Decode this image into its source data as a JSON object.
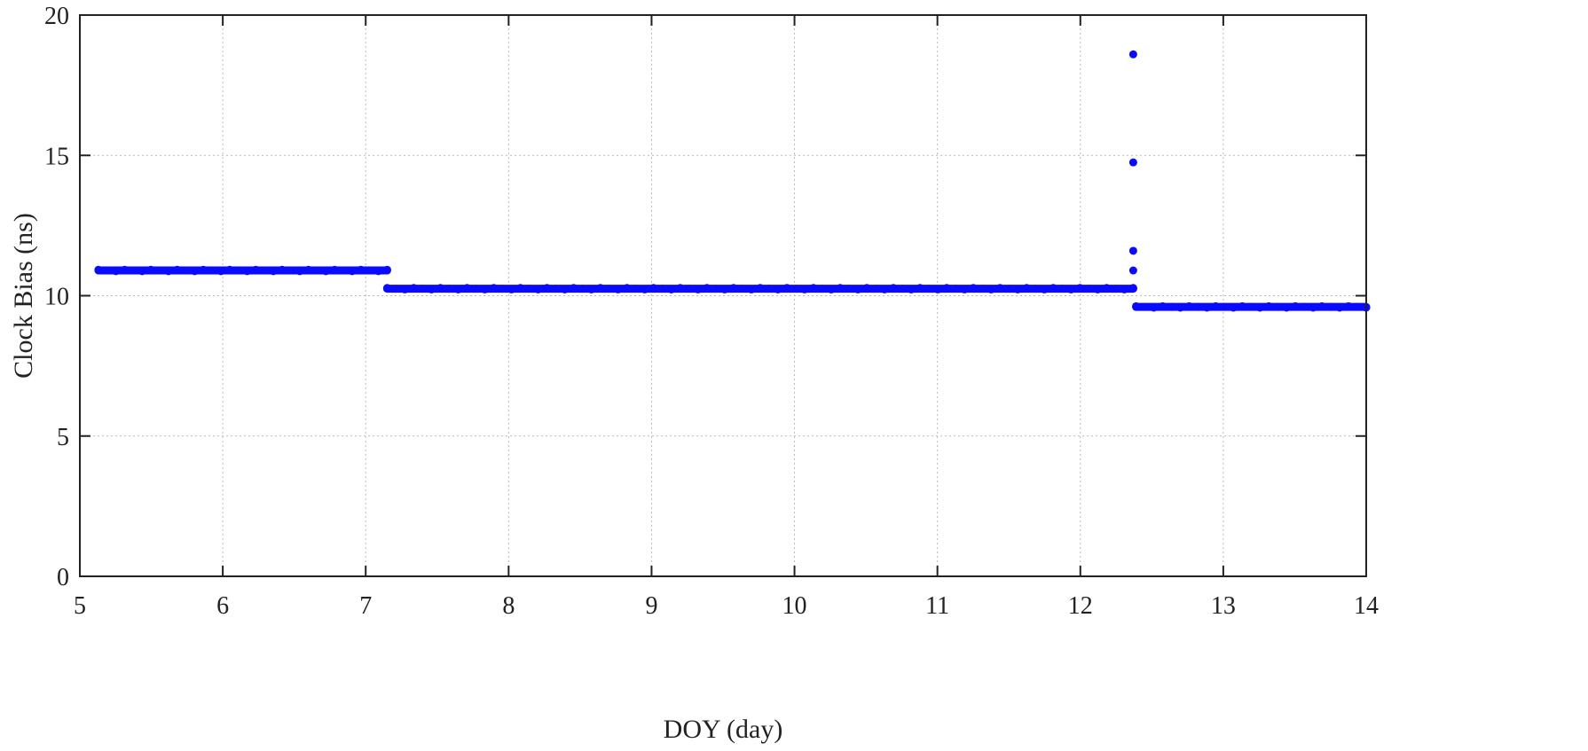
{
  "chart_data": {
    "type": "scatter",
    "title": "",
    "xlabel": "DOY (day)",
    "ylabel": "Clock Bias (ns)",
    "xlim": [
      5,
      14
    ],
    "ylim": [
      0,
      20
    ],
    "xticks": [
      5,
      6,
      7,
      8,
      9,
      10,
      11,
      12,
      13,
      14
    ],
    "yticks": [
      0,
      5,
      10,
      15,
      20
    ],
    "xtick_labels": [
      "5",
      "6",
      "7",
      "8",
      "9",
      "10",
      "11",
      "12",
      "13",
      "14"
    ],
    "ytick_labels": [
      "0",
      "5",
      "10",
      "15",
      "20"
    ],
    "grid": true,
    "legend": "none",
    "marker_color": "#0a0aff",
    "series": [
      {
        "segments": [
          {
            "x_start": 5.13,
            "x_end": 7.15,
            "y": 10.9
          },
          {
            "x_start": 7.15,
            "x_end": 12.37,
            "y": 10.25
          },
          {
            "x_start": 12.39,
            "x_end": 14.0,
            "y": 9.6
          }
        ],
        "outliers": [
          {
            "x": 12.37,
            "y": 18.6
          },
          {
            "x": 12.37,
            "y": 14.75
          },
          {
            "x": 12.37,
            "y": 11.6
          },
          {
            "x": 12.37,
            "y": 10.9
          }
        ]
      }
    ]
  }
}
